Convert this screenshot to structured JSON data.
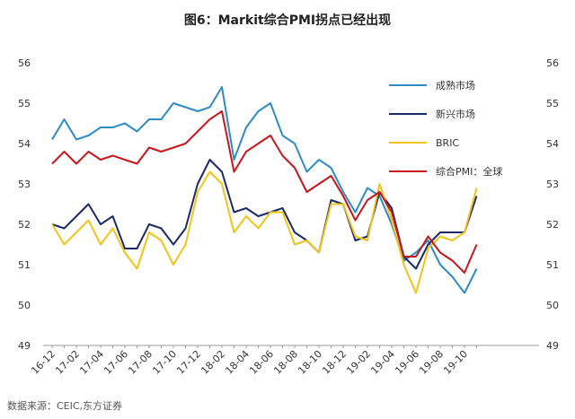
{
  "title": "图6：Markit综合PMI拐点已经出现",
  "source": "数据来源：CEIC,东方证券",
  "chart_data": {
    "type": "line",
    "title": "图6：Markit综合PMI拐点已经出现",
    "ylim": [
      49,
      56
    ],
    "y_ticks": [
      "49",
      "50",
      "51",
      "52",
      "53",
      "54",
      "55",
      "56"
    ],
    "y2_ticks": [
      "49",
      "50",
      "51",
      "52",
      "53",
      "54",
      "55",
      "56"
    ],
    "x_tick_labels": [
      "16-12",
      "17-02",
      "17-04",
      "17-06",
      "17-08",
      "17-10",
      "17-12",
      "18-02",
      "18-04",
      "18-06",
      "18-08",
      "18-10",
      "18-12",
      "19-02",
      "19-04",
      "19-06",
      "19-08",
      "19-10"
    ],
    "x": [
      "16-12",
      "17-01",
      "17-02",
      "17-03",
      "17-04",
      "17-05",
      "17-06",
      "17-07",
      "17-08",
      "17-09",
      "17-10",
      "17-11",
      "17-12",
      "18-01",
      "18-02",
      "18-03",
      "18-04",
      "18-05",
      "18-06",
      "18-07",
      "18-08",
      "18-09",
      "18-10",
      "18-11",
      "18-12",
      "19-01",
      "19-02",
      "19-03",
      "19-04",
      "19-05",
      "19-06",
      "19-07",
      "19-08",
      "19-09",
      "19-10",
      "19-11"
    ],
    "legend_position": "top-right",
    "grid": false,
    "series": [
      {
        "name": "成熟市场",
        "color": "#2E8BC9",
        "values": [
          54.1,
          54.6,
          54.1,
          54.2,
          54.4,
          54.4,
          54.5,
          54.3,
          54.6,
          54.6,
          55.0,
          54.9,
          54.8,
          54.9,
          55.4,
          53.6,
          54.4,
          54.8,
          55.0,
          54.2,
          54.0,
          53.3,
          53.6,
          53.4,
          52.8,
          52.3,
          52.9,
          52.7,
          52.0,
          51.1,
          51.3,
          51.6,
          51.0,
          50.7,
          50.3,
          50.9
        ]
      },
      {
        "name": "新兴市场",
        "color": "#1B2A6B",
        "values": [
          52.0,
          51.9,
          52.2,
          52.5,
          52.0,
          52.2,
          51.4,
          51.4,
          52.0,
          51.9,
          51.5,
          51.9,
          53.0,
          53.6,
          53.3,
          52.3,
          52.4,
          52.2,
          52.3,
          52.4,
          51.8,
          51.6,
          51.3,
          52.6,
          52.5,
          51.6,
          51.7,
          52.8,
          52.4,
          51.2,
          50.9,
          51.5,
          51.8,
          51.8,
          51.8,
          52.7
        ]
      },
      {
        "name": "BRIC",
        "color": "#F2C318",
        "values": [
          52.0,
          51.5,
          51.8,
          52.1,
          51.5,
          51.9,
          51.3,
          50.9,
          51.8,
          51.6,
          51.0,
          51.5,
          52.8,
          53.3,
          53.0,
          51.8,
          52.2,
          51.9,
          52.3,
          52.3,
          51.5,
          51.6,
          51.3,
          52.5,
          52.5,
          51.7,
          51.6,
          53.0,
          52.1,
          51.0,
          50.3,
          51.4,
          51.7,
          51.6,
          51.8,
          52.9
        ]
      },
      {
        "name": "综合PMI：全球",
        "color": "#C8161D",
        "values": [
          53.5,
          53.8,
          53.5,
          53.8,
          53.6,
          53.7,
          53.6,
          53.5,
          53.9,
          53.8,
          53.9,
          54.0,
          54.3,
          54.6,
          54.8,
          53.3,
          53.8,
          54.0,
          54.2,
          53.7,
          53.4,
          52.8,
          53.0,
          53.2,
          52.7,
          52.1,
          52.6,
          52.8,
          52.3,
          51.2,
          51.2,
          51.7,
          51.3,
          51.1,
          50.8,
          51.5
        ]
      }
    ]
  }
}
